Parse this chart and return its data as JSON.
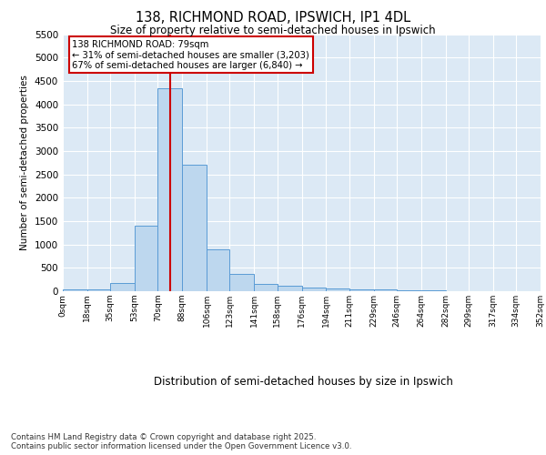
{
  "title_line1": "138, RICHMOND ROAD, IPSWICH, IP1 4DL",
  "title_line2": "Size of property relative to semi-detached houses in Ipswich",
  "xlabel": "Distribution of semi-detached houses by size in Ipswich",
  "ylabel": "Number of semi-detached properties",
  "bins": [
    0,
    18,
    35,
    53,
    70,
    88,
    106,
    123,
    141,
    158,
    176,
    194,
    211,
    229,
    246,
    264,
    282,
    299,
    317,
    334,
    352
  ],
  "bin_labels": [
    "0sqm",
    "18sqm",
    "35sqm",
    "53sqm",
    "70sqm",
    "88sqm",
    "106sqm",
    "123sqm",
    "141sqm",
    "158sqm",
    "176sqm",
    "194sqm",
    "211sqm",
    "229sqm",
    "246sqm",
    "264sqm",
    "282sqm",
    "299sqm",
    "317sqm",
    "334sqm",
    "352sqm"
  ],
  "counts": [
    30,
    35,
    170,
    1400,
    4350,
    2700,
    900,
    370,
    165,
    110,
    75,
    50,
    40,
    30,
    20,
    10,
    5,
    3,
    2,
    1
  ],
  "bar_color": "#BDD7EE",
  "bar_edge_color": "#5A9BD5",
  "property_size": 79,
  "vline_color": "#CC0000",
  "annotation_text": "138 RICHMOND ROAD: 79sqm\n← 31% of semi-detached houses are smaller (3,203)\n67% of semi-detached houses are larger (6,840) →",
  "annotation_box_color": "#ffffff",
  "annotation_box_edge": "#CC0000",
  "ylim": [
    0,
    5500
  ],
  "yticks": [
    0,
    500,
    1000,
    1500,
    2000,
    2500,
    3000,
    3500,
    4000,
    4500,
    5000,
    5500
  ],
  "bg_color": "#DCE9F5",
  "footnote": "Contains HM Land Registry data © Crown copyright and database right 2025.\nContains public sector information licensed under the Open Government Licence v3.0."
}
